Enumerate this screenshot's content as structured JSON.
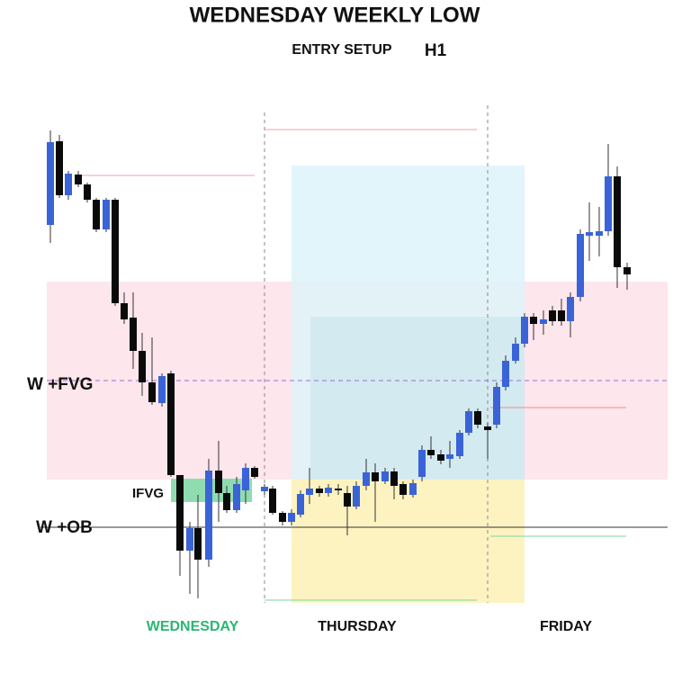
{
  "header": {
    "title": "WEDNESDAY WEEKLY LOW",
    "subtitle": "ENTRY SETUP",
    "timeframe": "H1"
  },
  "annotations": {
    "fvg": "W  +FVG",
    "ifvg": "IFVG",
    "ob": "W +OB"
  },
  "days": [
    "WEDNESDAY",
    "THURSDAY",
    "FRIDAY"
  ]
}
